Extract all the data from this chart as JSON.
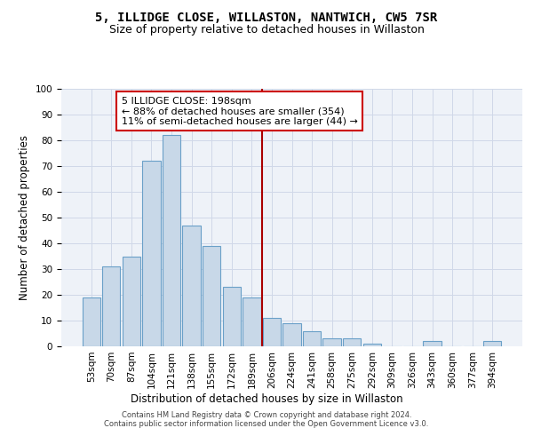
{
  "title1": "5, ILLIDGE CLOSE, WILLASTON, NANTWICH, CW5 7SR",
  "title2": "Size of property relative to detached houses in Willaston",
  "xlabel": "Distribution of detached houses by size in Willaston",
  "ylabel": "Number of detached properties",
  "categories": [
    "53sqm",
    "70sqm",
    "87sqm",
    "104sqm",
    "121sqm",
    "138sqm",
    "155sqm",
    "172sqm",
    "189sqm",
    "206sqm",
    "224sqm",
    "241sqm",
    "258sqm",
    "275sqm",
    "292sqm",
    "309sqm",
    "326sqm",
    "343sqm",
    "360sqm",
    "377sqm",
    "394sqm"
  ],
  "bar_values": [
    19,
    31,
    35,
    72,
    82,
    47,
    39,
    23,
    19,
    11,
    9,
    6,
    3,
    3,
    1,
    0,
    0,
    2,
    0,
    0,
    2
  ],
  "bar_color": "#c8d8e8",
  "bar_edge_color": "#6aa0c8",
  "vline_x": 8.5,
  "vline_color": "#aa0000",
  "annotation_text": "5 ILLIDGE CLOSE: 198sqm\n← 88% of detached houses are smaller (354)\n11% of semi-detached houses are larger (44) →",
  "annotation_box_color": "#ffffff",
  "annotation_box_edge": "#cc0000",
  "ylim": [
    0,
    100
  ],
  "yticks": [
    0,
    10,
    20,
    30,
    40,
    50,
    60,
    70,
    80,
    90,
    100
  ],
  "grid_color": "#d0d8e8",
  "background_color": "#eef2f8",
  "footer": "Contains HM Land Registry data © Crown copyright and database right 2024.\nContains public sector information licensed under the Open Government Licence v3.0.",
  "title1_fontsize": 10,
  "title2_fontsize": 9,
  "xlabel_fontsize": 8.5,
  "ylabel_fontsize": 8.5,
  "annotation_fontsize": 8,
  "footer_fontsize": 6,
  "tick_fontsize": 7.5
}
